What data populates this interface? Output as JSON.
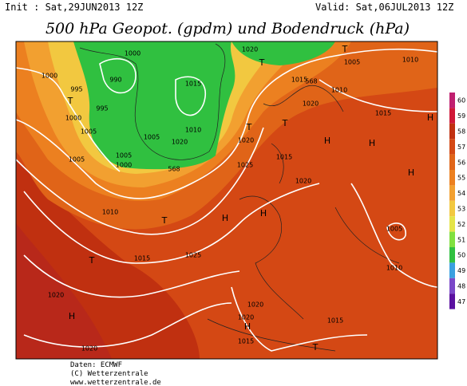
{
  "header": {
    "init": "Init : Sat,29JUN2013 12Z",
    "valid": "Valid: Sat,06JUL2013 12Z",
    "title": "500 hPa Geopot. (gpdm) und Bodendruck (hPa)"
  },
  "scale": {
    "values": [
      60,
      59,
      58,
      57,
      56,
      55,
      54,
      53,
      52,
      51,
      50,
      49,
      48,
      47
    ],
    "colors": [
      "#c02070",
      "#d01838",
      "#c03010",
      "#d44814",
      "#e06418",
      "#ec8020",
      "#f2a030",
      "#f2c840",
      "#e4e448",
      "#80e040",
      "#30c040",
      "#3aa0e0",
      "#7a48c8",
      "#5a10a0"
    ]
  },
  "map": {
    "labels": [
      "T",
      "1000",
      "995",
      "995",
      "1000",
      "1005",
      "1005",
      "1005",
      "1000",
      "1010",
      "T",
      "T",
      "1015",
      "1025",
      "H",
      "H",
      "1020",
      "H",
      "1020",
      "H",
      "1020",
      "1015",
      "1015",
      "T",
      "1020",
      "1010",
      "1005",
      "H",
      "H",
      "H",
      "T",
      "1005",
      "1010",
      "1015",
      "1015",
      "1020",
      "T",
      "T",
      "T",
      "1020",
      "1025",
      "1015",
      "1020",
      "1010",
      "1020",
      "1000",
      "990",
      "1015",
      "1005",
      "1020",
      "1010",
      "568",
      "568",
      "H"
    ]
  },
  "footer": {
    "lines": [
      "Daten: ECMWF",
      "(C) Wetterzentrale",
      "www.wetterzentrale.de"
    ]
  }
}
